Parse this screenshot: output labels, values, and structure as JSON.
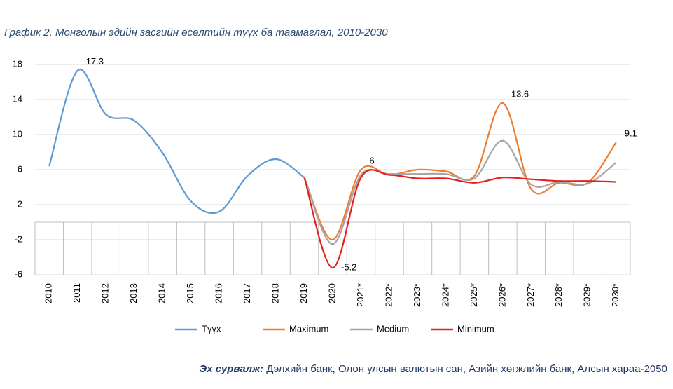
{
  "chart_data": {
    "type": "line",
    "title": "График 2. Монголын эдийн засгийн өсөлтийн түүх ба таамаглал, 2010-2030",
    "source_label": "Эх сурвалж:",
    "source": "Дэлхийн банк, Олон улсын валютын сан, Азийн хөгжлийн банк, Алсын хараа-2050",
    "categories": [
      "2010",
      "2011",
      "2012",
      "2013",
      "2014",
      "2015",
      "2016",
      "2017",
      "2018",
      "2019",
      "2020",
      "2021*",
      "2022*",
      "2023*",
      "2024*",
      "2025*",
      "2026*",
      "2027*",
      "2028*",
      "2029*",
      "2030*"
    ],
    "series": [
      {
        "name": "Түүх",
        "color": "#5b9bd5",
        "values": [
          6.4,
          17.3,
          12.3,
          11.6,
          7.9,
          2.4,
          1.2,
          5.3,
          7.2,
          5.1,
          null,
          null,
          null,
          null,
          null,
          null,
          null,
          null,
          null,
          null,
          null
        ],
        "value_labels": [
          null,
          "17.3",
          null,
          null,
          null,
          null,
          null,
          null,
          null,
          null,
          null,
          null,
          null,
          null,
          null,
          null,
          null,
          null,
          null,
          null,
          null
        ]
      },
      {
        "name": "Maximum",
        "color": "#ed7d31",
        "values": [
          null,
          null,
          null,
          null,
          null,
          null,
          null,
          null,
          null,
          5.1,
          -2.0,
          6,
          5.4,
          6.0,
          5.8,
          5.3,
          13.6,
          3.8,
          4.5,
          4.5,
          9.1
        ],
        "value_labels": [
          null,
          null,
          null,
          null,
          null,
          null,
          null,
          null,
          null,
          null,
          null,
          "6",
          null,
          null,
          null,
          null,
          "13.6",
          null,
          null,
          null,
          "9.1"
        ]
      },
      {
        "name": "Medium",
        "color": "#a5a5a5",
        "values": [
          null,
          null,
          null,
          null,
          null,
          null,
          null,
          null,
          null,
          5.1,
          -2.5,
          5.4,
          5.5,
          5.5,
          5.5,
          5.0,
          9.3,
          4.3,
          4.6,
          4.4,
          6.8
        ]
      },
      {
        "name": "Minimum",
        "color": "#e8201c",
        "values": [
          null,
          null,
          null,
          null,
          null,
          null,
          null,
          null,
          null,
          5.1,
          -5.2,
          5.1,
          5.4,
          5.0,
          5.0,
          4.5,
          5.1,
          4.9,
          4.7,
          4.7,
          4.6
        ],
        "value_labels": [
          null,
          null,
          null,
          null,
          null,
          null,
          null,
          null,
          null,
          null,
          "-5.2",
          null,
          null,
          null,
          null,
          null,
          null,
          null,
          null,
          null,
          null
        ]
      }
    ],
    "ylim": [
      -6,
      18
    ],
    "yticks": [
      -6,
      -2,
      2,
      6,
      10,
      14,
      18
    ],
    "grid": true,
    "legend": "bottom"
  }
}
